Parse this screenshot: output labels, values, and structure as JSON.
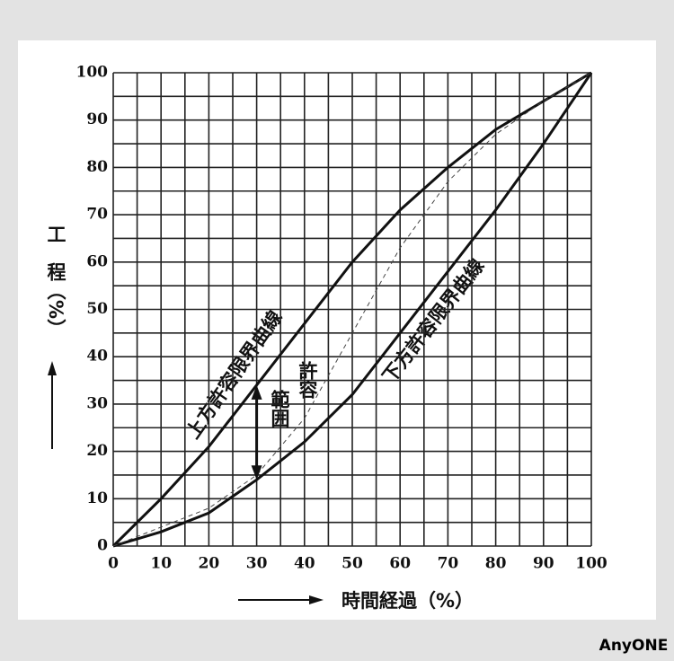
{
  "chart_data": {
    "type": "line",
    "x": [
      0,
      10,
      20,
      30,
      40,
      50,
      60,
      70,
      80,
      90,
      100
    ],
    "series": [
      {
        "color": "#111111",
        "dashed": false,
        "values": [
          0,
          10,
          21,
          34,
          47,
          60,
          71,
          80,
          88,
          94,
          100
        ]
      },
      {
        "color": "#111111",
        "dashed": false,
        "values": [
          0,
          3,
          7,
          14,
          22,
          32,
          45,
          58,
          71,
          85,
          100
        ]
      },
      {
        "color": "#444444",
        "dashed": true,
        "values": [
          0,
          4,
          8,
          15,
          27,
          45,
          63,
          77,
          87,
          94,
          100
        ]
      }
    ],
    "xlim": [
      0,
      100
    ],
    "ylim": [
      0,
      100
    ],
    "xticks": [
      0,
      10,
      20,
      30,
      40,
      50,
      60,
      70,
      80,
      90,
      100
    ],
    "yticks": [
      0,
      10,
      20,
      30,
      40,
      50,
      60,
      70,
      80,
      90,
      100
    ],
    "xgrid": [
      0,
      5,
      10,
      15,
      20,
      25,
      30,
      35,
      40,
      45,
      50,
      55,
      60,
      65,
      70,
      75,
      80,
      85,
      90,
      95,
      100
    ],
    "ygrid": [
      0,
      5,
      10,
      15,
      20,
      25,
      30,
      35,
      40,
      45,
      50,
      55,
      60,
      65,
      70,
      75,
      80,
      85,
      90,
      95,
      100
    ],
    "xlabel": "時間経過（%）",
    "ylabel": "工　程（%）",
    "annotations": [
      "上方許容限界曲線",
      "下方許容限界曲線",
      "許容",
      "範囲"
    ]
  },
  "watermark": "AnyONE"
}
